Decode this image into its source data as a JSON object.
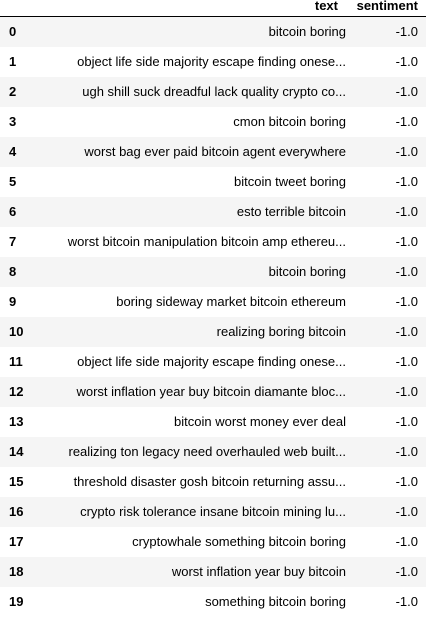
{
  "table": {
    "columns": [
      "",
      "text",
      "sentiment"
    ],
    "rows": [
      {
        "index": "0",
        "text": "bitcoin boring",
        "sentiment": "-1.0"
      },
      {
        "index": "1",
        "text": "object life side majority escape finding onese...",
        "sentiment": "-1.0"
      },
      {
        "index": "2",
        "text": "ugh shill suck dreadful lack quality crypto co...",
        "sentiment": "-1.0"
      },
      {
        "index": "3",
        "text": "cmon bitcoin boring",
        "sentiment": "-1.0"
      },
      {
        "index": "4",
        "text": "worst bag ever paid bitcoin agent everywhere",
        "sentiment": "-1.0"
      },
      {
        "index": "5",
        "text": "bitcoin tweet boring",
        "sentiment": "-1.0"
      },
      {
        "index": "6",
        "text": "esto terrible bitcoin",
        "sentiment": "-1.0"
      },
      {
        "index": "7",
        "text": "worst bitcoin manipulation bitcoin amp ethereu...",
        "sentiment": "-1.0"
      },
      {
        "index": "8",
        "text": "bitcoin boring",
        "sentiment": "-1.0"
      },
      {
        "index": "9",
        "text": "boring sideway market bitcoin ethereum",
        "sentiment": "-1.0"
      },
      {
        "index": "10",
        "text": "realizing boring bitcoin",
        "sentiment": "-1.0"
      },
      {
        "index": "11",
        "text": "object life side majority escape finding onese...",
        "sentiment": "-1.0"
      },
      {
        "index": "12",
        "text": "worst inflation year buy bitcoin diamante bloc...",
        "sentiment": "-1.0"
      },
      {
        "index": "13",
        "text": "bitcoin worst money ever deal",
        "sentiment": "-1.0"
      },
      {
        "index": "14",
        "text": "realizing ton legacy need overhauled web built...",
        "sentiment": "-1.0"
      },
      {
        "index": "15",
        "text": "threshold disaster gosh bitcoin returning assu...",
        "sentiment": "-1.0"
      },
      {
        "index": "16",
        "text": "crypto risk tolerance insane bitcoin mining lu...",
        "sentiment": "-1.0"
      },
      {
        "index": "17",
        "text": "cryptowhale something bitcoin boring",
        "sentiment": "-1.0"
      },
      {
        "index": "18",
        "text": "worst inflation year buy bitcoin",
        "sentiment": "-1.0"
      },
      {
        "index": "19",
        "text": "something bitcoin boring",
        "sentiment": "-1.0"
      }
    ]
  }
}
